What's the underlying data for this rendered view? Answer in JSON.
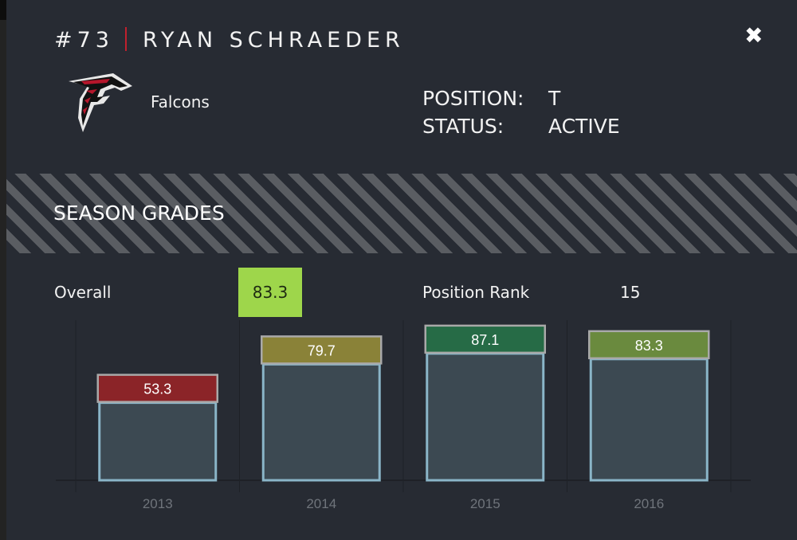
{
  "header": {
    "number": "#73",
    "name": "RYAN SCHRAEDER",
    "close_icon": "close-icon"
  },
  "team": {
    "name": "Falcons",
    "logo": "falcons-logo"
  },
  "info": {
    "position_label": "POSITION:",
    "position": "T",
    "status_label": "STATUS:",
    "status": "ACTIVE"
  },
  "section": {
    "title": "SEASON GRADES"
  },
  "summary": {
    "overall_label": "Overall",
    "overall_value": "83.3",
    "overall_color": "#9ed64b",
    "rank_label": "Position Rank",
    "rank_value": "15"
  },
  "chart_data": {
    "type": "bar",
    "categories": [
      "2013",
      "2014",
      "2015",
      "2016"
    ],
    "values": [
      53.3,
      79.7,
      87.1,
      83.3
    ],
    "labels": [
      "53.3",
      "79.7",
      "87.1",
      "83.3"
    ],
    "label_colors": [
      "#8b2428",
      "#8a8238",
      "#266b46",
      "#6a8a3e"
    ],
    "bar_color": "#3c4952",
    "bar_border": "#8ab5c8",
    "ylim": [
      0,
      110
    ],
    "grid": false
  }
}
